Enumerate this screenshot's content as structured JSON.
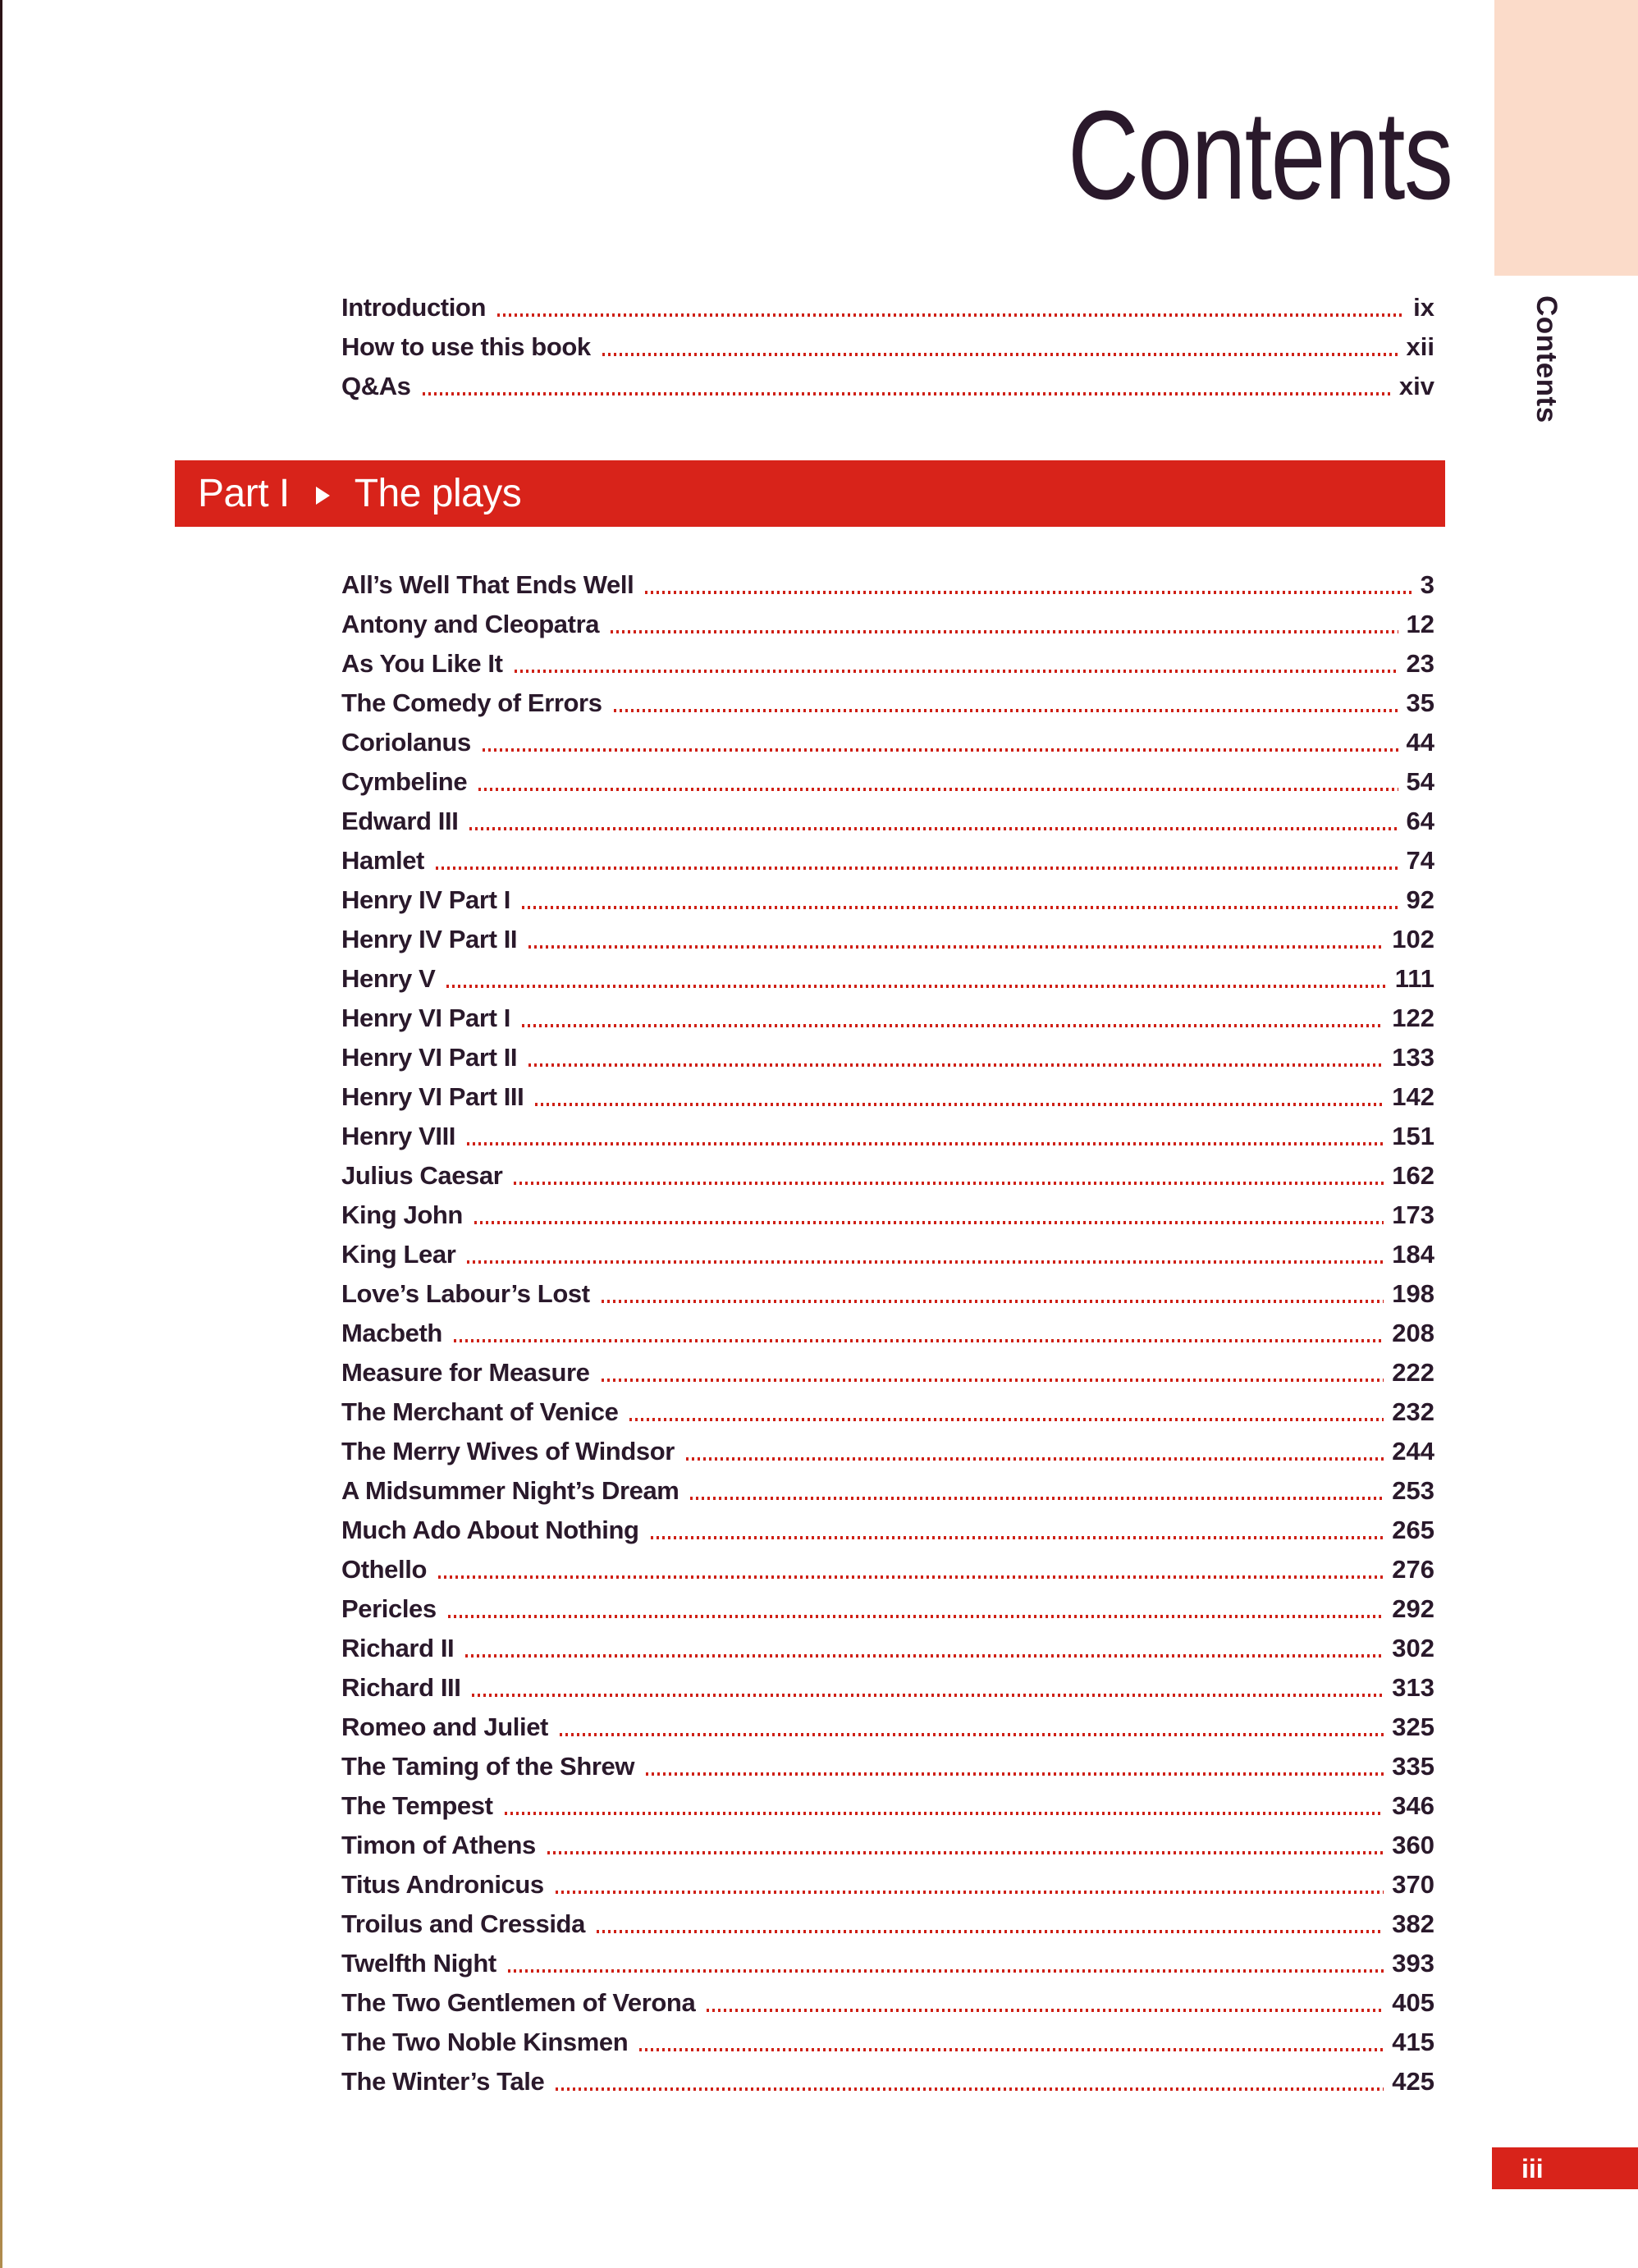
{
  "page": {
    "title": "Contents",
    "side_tab": "Contents",
    "folio": "iii"
  },
  "banner": {
    "part": "Part I",
    "section": "The plays"
  },
  "front_matter": [
    {
      "label": "Introduction",
      "page": "ix"
    },
    {
      "label": "How to use this book",
      "page": "xii"
    },
    {
      "label": "Q&As",
      "page": "xiv"
    }
  ],
  "plays": [
    {
      "label": "All’s Well That Ends Well",
      "page": "3"
    },
    {
      "label": "Antony and Cleopatra",
      "page": "12"
    },
    {
      "label": "As You Like It",
      "page": "23"
    },
    {
      "label": "The Comedy of Errors",
      "page": "35"
    },
    {
      "label": "Coriolanus",
      "page": "44"
    },
    {
      "label": "Cymbeline",
      "page": "54"
    },
    {
      "label": "Edward III",
      "page": "64"
    },
    {
      "label": "Hamlet",
      "page": "74"
    },
    {
      "label": "Henry IV Part I",
      "page": "92"
    },
    {
      "label": "Henry IV Part II",
      "page": "102"
    },
    {
      "label": "Henry V",
      "page": "111"
    },
    {
      "label": "Henry VI Part I",
      "page": "122"
    },
    {
      "label": "Henry VI Part II",
      "page": "133"
    },
    {
      "label": "Henry VI Part III",
      "page": "142"
    },
    {
      "label": "Henry VIII",
      "page": "151"
    },
    {
      "label": "Julius Caesar",
      "page": "162"
    },
    {
      "label": "King John",
      "page": "173"
    },
    {
      "label": "King Lear",
      "page": "184"
    },
    {
      "label": "Love’s Labour’s Lost",
      "page": "198"
    },
    {
      "label": "Macbeth",
      "page": "208"
    },
    {
      "label": "Measure for Measure",
      "page": "222"
    },
    {
      "label": "The Merchant of Venice",
      "page": "232"
    },
    {
      "label": "The Merry Wives of Windsor",
      "page": "244"
    },
    {
      "label": "A Midsummer Night’s Dream",
      "page": "253"
    },
    {
      "label": "Much Ado About Nothing",
      "page": "265"
    },
    {
      "label": "Othello",
      "page": "276"
    },
    {
      "label": "Pericles",
      "page": "292"
    },
    {
      "label": "Richard II",
      "page": "302"
    },
    {
      "label": "Richard III",
      "page": "313"
    },
    {
      "label": "Romeo and Juliet",
      "page": "325"
    },
    {
      "label": "The Taming of the Shrew",
      "page": "335"
    },
    {
      "label": "The Tempest",
      "page": "346"
    },
    {
      "label": "Timon of Athens",
      "page": "360"
    },
    {
      "label": "Titus Andronicus",
      "page": "370"
    },
    {
      "label": "Troilus and Cressida",
      "page": "382"
    },
    {
      "label": "Twelfth Night",
      "page": "393"
    },
    {
      "label": "The Two Gentlemen of Verona",
      "page": "405"
    },
    {
      "label": "The Two Noble Kinsmen",
      "page": "415"
    },
    {
      "label": "The Winter’s Tale",
      "page": "425"
    }
  ],
  "colors": {
    "accent": "#d8231a",
    "peach": "#fbdbc9",
    "ink": "#2a192b",
    "leader": "#cf2015"
  }
}
